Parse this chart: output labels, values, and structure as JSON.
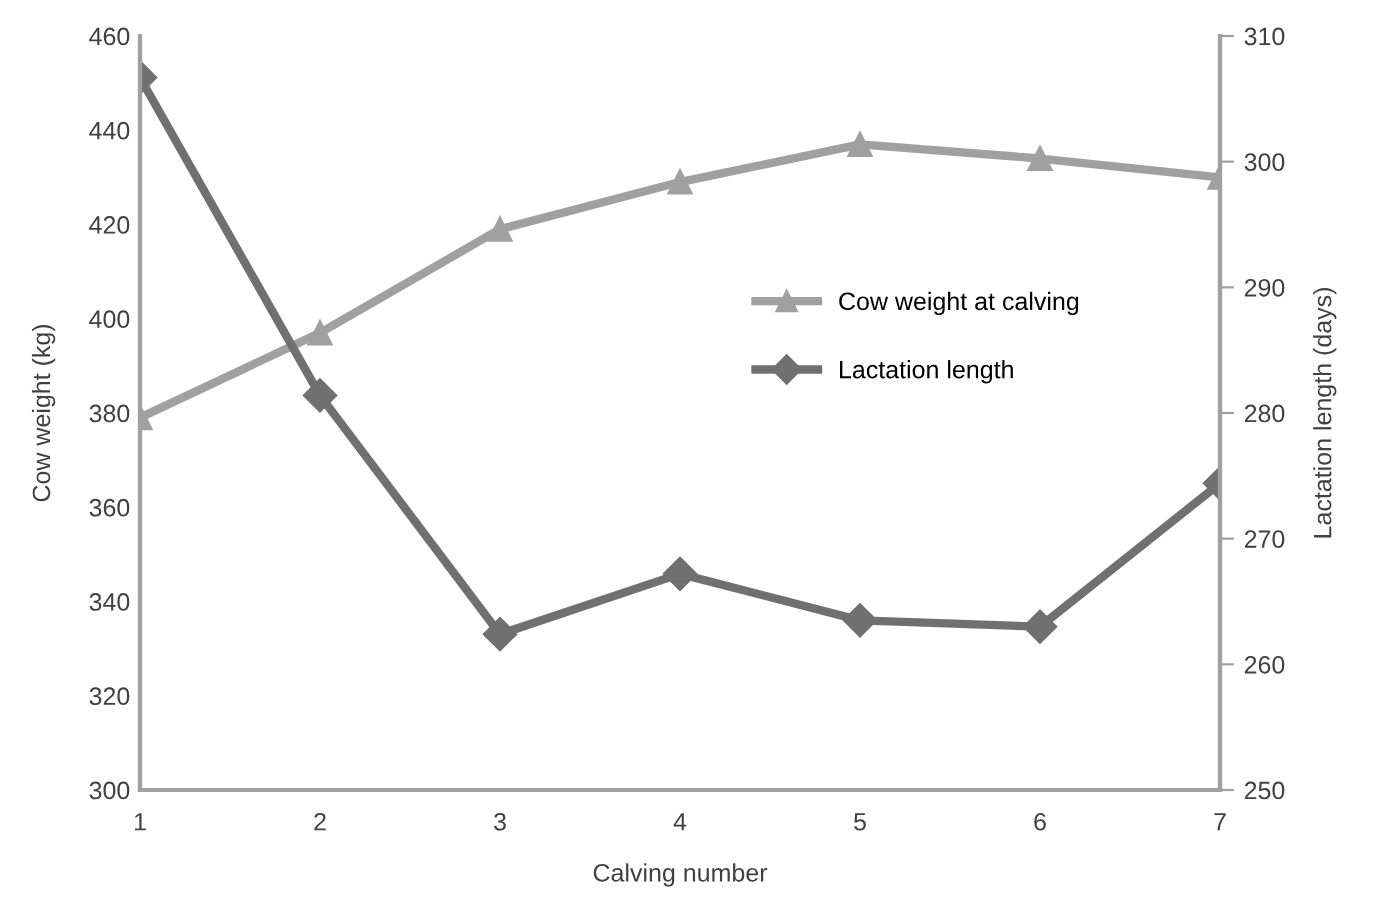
{
  "chart_data": {
    "type": "line",
    "xlabel": "Calving number",
    "ylabel": "Cow weight (kg)",
    "y2label": "Lactation length (days)",
    "x": [
      1,
      2,
      3,
      4,
      5,
      6,
      7
    ],
    "series": [
      {
        "name": "Cow weight at calving",
        "color": "#a0a0a0",
        "marker": "triangle",
        "values": [
          379,
          397,
          419,
          429,
          437,
          434,
          430
        ]
      },
      {
        "name": "Lactation length",
        "color": "#707070",
        "marker": "diamond",
        "axis": "y2",
        "values": [
          306.7,
          281.4,
          262.4,
          267.2,
          263.5,
          263.0,
          274.4
        ]
      }
    ],
    "xlim": [
      1,
      7
    ],
    "xticks": [
      1,
      2,
      3,
      4,
      5,
      6,
      7
    ],
    "ylim": [
      300,
      460
    ],
    "yticks": [
      300,
      320,
      340,
      360,
      380,
      400,
      420,
      440,
      460
    ],
    "y2lim": [
      250,
      310
    ],
    "y2ticks": [
      250,
      260,
      270,
      280,
      290,
      300,
      310
    ],
    "grid": false,
    "legend": "center",
    "line_style": "solid"
  }
}
